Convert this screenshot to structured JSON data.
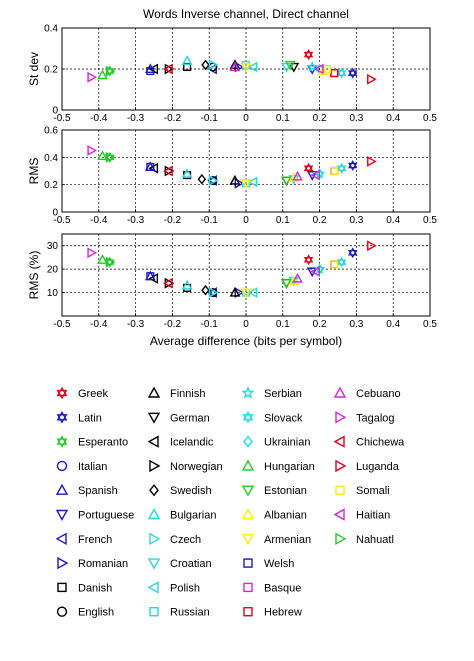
{
  "figure": {
    "title": "Words Inverse channel, Direct channel",
    "xlabel": "Average difference (bits per symbol)"
  },
  "colors": {
    "Greek": "#e8001c",
    "Latin": "#1a1acc",
    "Esperanto": "#22cc22",
    "Italian": "#1a1acc",
    "Spanish": "#1a1acc",
    "Portuguese": "#1a1acc",
    "French": "#1a1acc",
    "Romanian": "#1a1acc",
    "Danish": "#000000",
    "English": "#000000",
    "Finnish": "#000000",
    "German": "#000000",
    "Icelandic": "#000000",
    "Norwegian": "#000000",
    "Swedish": "#000000",
    "Bulgarian": "#22dddd",
    "Czech": "#22dddd",
    "Croatian": "#22dddd",
    "Polish": "#22dddd",
    "Russian": "#22dddd",
    "Serbian": "#22dddd",
    "Slovack": "#22dddd",
    "Ukrainian": "#22dddd",
    "Hungarian": "#22cc22",
    "Estonian": "#22cc22",
    "Albanian": "#ffee00",
    "Armenian": "#ffee00",
    "Welsh": "#1a1acc",
    "Basque": "#dd22dd",
    "Hebrew": "#e8001c",
    "Cebuano": "#dd22dd",
    "Tagalog": "#dd22dd",
    "Chichewa": "#e8001c",
    "Luganda": "#e8001c",
    "Somali": "#ffee00",
    "Haitian": "#dd22dd",
    "Nahuatl": "#22cc22"
  },
  "legend": {
    "columns": [
      [
        {
          "name": "Greek",
          "marker": "hexagram"
        },
        {
          "name": "Latin",
          "marker": "hexagram"
        },
        {
          "name": "Esperanto",
          "marker": "hexagram"
        },
        {
          "name": "Italian",
          "marker": "circle"
        },
        {
          "name": "Spanish",
          "marker": "triangle-up"
        },
        {
          "name": "Portuguese",
          "marker": "triangle-down"
        },
        {
          "name": "French",
          "marker": "triangle-left"
        },
        {
          "name": "Romanian",
          "marker": "triangle-right"
        },
        {
          "name": "Danish",
          "marker": "square"
        },
        {
          "name": "English",
          "marker": "circle"
        }
      ],
      [
        {
          "name": "Finnish",
          "marker": "triangle-up"
        },
        {
          "name": "German",
          "marker": "triangle-down"
        },
        {
          "name": "Icelandic",
          "marker": "triangle-left"
        },
        {
          "name": "Norwegian",
          "marker": "triangle-right"
        },
        {
          "name": "Swedish",
          "marker": "diamond"
        },
        {
          "name": "Bulgarian",
          "marker": "triangle-up"
        },
        {
          "name": "Czech",
          "marker": "triangle-right"
        },
        {
          "name": "Croatian",
          "marker": "triangle-down"
        },
        {
          "name": "Polish",
          "marker": "triangle-left"
        },
        {
          "name": "Russian",
          "marker": "square"
        }
      ],
      [
        {
          "name": "Serbian",
          "marker": "star"
        },
        {
          "name": "Slovack",
          "marker": "hexagram"
        },
        {
          "name": "Ukrainian",
          "marker": "diamond"
        },
        {
          "name": "Hungarian",
          "marker": "triangle-up"
        },
        {
          "name": "Estonian",
          "marker": "triangle-down"
        },
        {
          "name": "Albanian",
          "marker": "triangle-up"
        },
        {
          "name": "Armenian",
          "marker": "triangle-down"
        },
        {
          "name": "Welsh",
          "marker": "square"
        },
        {
          "name": "Basque",
          "marker": "square"
        },
        {
          "name": "Hebrew",
          "marker": "square"
        }
      ],
      [
        {
          "name": "Cebuano",
          "marker": "triangle-up"
        },
        {
          "name": "Tagalog",
          "marker": "triangle-right"
        },
        {
          "name": "Chichewa",
          "marker": "triangle-left"
        },
        {
          "name": "Luganda",
          "marker": "triangle-right"
        },
        {
          "name": "Somali",
          "marker": "square"
        },
        {
          "name": "Haitian",
          "marker": "triangle-left"
        },
        {
          "name": "Nahuatl",
          "marker": "triangle-right"
        }
      ]
    ]
  },
  "chart_data": [
    {
      "type": "scatter",
      "title": "Words Inverse channel, Direct channel",
      "xlabel": "",
      "ylabel": "St dev",
      "xlim": [
        -0.5,
        0.5
      ],
      "ylim": [
        0,
        0.4
      ],
      "xticks": [
        "-0.5",
        "-0.4",
        "-0.3",
        "-0.2",
        "-0.1",
        "0",
        "0.1",
        "0.2",
        "0.3",
        "0.4",
        "0.5"
      ],
      "yticks": [
        "0",
        "0.2",
        "0.4"
      ],
      "grid": true,
      "points": [
        {
          "label": "Greek",
          "x": 0.17,
          "y": 0.27
        },
        {
          "label": "Latin",
          "x": 0.29,
          "y": 0.18
        },
        {
          "label": "Esperanto",
          "x": -0.37,
          "y": 0.19
        },
        {
          "label": "Italian",
          "x": -0.09,
          "y": 0.21
        },
        {
          "label": "Spanish",
          "x": -0.26,
          "y": 0.2
        },
        {
          "label": "Portuguese",
          "x": 0.18,
          "y": 0.2
        },
        {
          "label": "French",
          "x": -0.09,
          "y": 0.2
        },
        {
          "label": "Romanian",
          "x": -0.02,
          "y": 0.21
        },
        {
          "label": "Danish",
          "x": -0.16,
          "y": 0.21
        },
        {
          "label": "English",
          "x": -0.09,
          "y": 0.21
        },
        {
          "label": "Finnish",
          "x": -0.03,
          "y": 0.22
        },
        {
          "label": "German",
          "x": 0.13,
          "y": 0.21
        },
        {
          "label": "Icelandic",
          "x": -0.25,
          "y": 0.2
        },
        {
          "label": "Norwegian",
          "x": -0.21,
          "y": 0.2
        },
        {
          "label": "Swedish",
          "x": -0.11,
          "y": 0.22
        },
        {
          "label": "Bulgarian",
          "x": -0.16,
          "y": 0.24
        },
        {
          "label": "Czech",
          "x": -0.09,
          "y": 0.22
        },
        {
          "label": "Croatian",
          "x": 0.11,
          "y": 0.21
        },
        {
          "label": "Polish",
          "x": 0.02,
          "y": 0.21
        },
        {
          "label": "Russian",
          "x": 0.0,
          "y": 0.22
        },
        {
          "label": "Serbian",
          "x": 0.18,
          "y": 0.21
        },
        {
          "label": "Slovack",
          "x": 0.26,
          "y": 0.18
        },
        {
          "label": "Ukrainian",
          "x": 0.2,
          "y": 0.2
        },
        {
          "label": "Hungarian",
          "x": -0.39,
          "y": 0.17
        },
        {
          "label": "Estonian",
          "x": 0.12,
          "y": 0.22
        },
        {
          "label": "Albanian",
          "x": 0.21,
          "y": 0.19
        },
        {
          "label": "Armenian",
          "x": 0.0,
          "y": 0.21
        },
        {
          "label": "Welsh",
          "x": -0.26,
          "y": 0.19
        },
        {
          "label": "Basque",
          "x": 0.24,
          "y": 0.18
        },
        {
          "label": "Hebrew",
          "x": 0.24,
          "y": 0.18
        },
        {
          "label": "Cebuano",
          "x": -0.03,
          "y": 0.21
        },
        {
          "label": "Tagalog",
          "x": -0.42,
          "y": 0.16
        },
        {
          "label": "Chichewa",
          "x": -0.21,
          "y": 0.2
        },
        {
          "label": "Luganda",
          "x": 0.34,
          "y": 0.15
        },
        {
          "label": "Somali",
          "x": 0.22,
          "y": 0.2
        },
        {
          "label": "Haitian",
          "x": 0.2,
          "y": 0.2
        },
        {
          "label": "Nahuatl",
          "x": -0.37,
          "y": 0.19
        }
      ]
    },
    {
      "type": "scatter",
      "xlabel": "",
      "ylabel": "RMS",
      "xlim": [
        -0.5,
        0.5
      ],
      "ylim": [
        0,
        0.6
      ],
      "xticks": [
        "-0.5",
        "-0.4",
        "-0.3",
        "-0.2",
        "-0.1",
        "0",
        "0.1",
        "0.2",
        "0.3",
        "0.4",
        "0.5"
      ],
      "yticks": [
        "0",
        "0.2",
        "0.4",
        "0.6"
      ],
      "grid": true,
      "points": [
        {
          "label": "Greek",
          "x": 0.17,
          "y": 0.32
        },
        {
          "label": "Latin",
          "x": 0.29,
          "y": 0.34
        },
        {
          "label": "Esperanto",
          "x": -0.37,
          "y": 0.4
        },
        {
          "label": "Italian",
          "x": -0.09,
          "y": 0.23
        },
        {
          "label": "Spanish",
          "x": -0.26,
          "y": 0.33
        },
        {
          "label": "Portuguese",
          "x": 0.18,
          "y": 0.27
        },
        {
          "label": "French",
          "x": -0.09,
          "y": 0.23
        },
        {
          "label": "Romanian",
          "x": -0.02,
          "y": 0.21
        },
        {
          "label": "Danish",
          "x": -0.16,
          "y": 0.27
        },
        {
          "label": "English",
          "x": -0.09,
          "y": 0.23
        },
        {
          "label": "Finnish",
          "x": -0.03,
          "y": 0.23
        },
        {
          "label": "German",
          "x": 0.11,
          "y": 0.23
        },
        {
          "label": "Icelandic",
          "x": -0.25,
          "y": 0.32
        },
        {
          "label": "Norwegian",
          "x": -0.21,
          "y": 0.3
        },
        {
          "label": "Swedish",
          "x": -0.12,
          "y": 0.24
        },
        {
          "label": "Bulgarian",
          "x": -0.16,
          "y": 0.28
        },
        {
          "label": "Czech",
          "x": -0.09,
          "y": 0.23
        },
        {
          "label": "Croatian",
          "x": 0.13,
          "y": 0.24
        },
        {
          "label": "Polish",
          "x": 0.02,
          "y": 0.22
        },
        {
          "label": "Russian",
          "x": 0.0,
          "y": 0.21
        },
        {
          "label": "Serbian",
          "x": 0.2,
          "y": 0.28
        },
        {
          "label": "Slovack",
          "x": 0.26,
          "y": 0.32
        },
        {
          "label": "Ukrainian",
          "x": 0.2,
          "y": 0.28
        },
        {
          "label": "Hungarian",
          "x": -0.39,
          "y": 0.41
        },
        {
          "label": "Estonian",
          "x": 0.11,
          "y": 0.23
        },
        {
          "label": "Albanian",
          "x": 0.13,
          "y": 0.25
        },
        {
          "label": "Armenian",
          "x": 0.0,
          "y": 0.21
        },
        {
          "label": "Welsh",
          "x": -0.26,
          "y": 0.33
        },
        {
          "label": "Basque",
          "x": 0.24,
          "y": 0.3
        },
        {
          "label": "Hebrew",
          "x": 0.24,
          "y": 0.3
        },
        {
          "label": "Cebuano",
          "x": 0.14,
          "y": 0.26
        },
        {
          "label": "Tagalog",
          "x": -0.42,
          "y": 0.45
        },
        {
          "label": "Chichewa",
          "x": -0.21,
          "y": 0.3
        },
        {
          "label": "Luganda",
          "x": 0.34,
          "y": 0.37
        },
        {
          "label": "Somali",
          "x": 0.24,
          "y": 0.3
        },
        {
          "label": "Haitian",
          "x": 0.19,
          "y": 0.27
        },
        {
          "label": "Nahuatl",
          "x": -0.37,
          "y": 0.4
        }
      ]
    },
    {
      "type": "scatter",
      "xlabel": "Average difference (bits per symbol)",
      "ylabel": "RMS (%)",
      "xlim": [
        -0.5,
        0.5
      ],
      "ylim": [
        0,
        35
      ],
      "xticks": [
        "-0.5",
        "-0.4",
        "-0.3",
        "-0.2",
        "-0.1",
        "0",
        "0.1",
        "0.2",
        "0.3",
        "0.4",
        "0.5"
      ],
      "yticks": [
        "10",
        "20",
        "30"
      ],
      "grid": true,
      "points": [
        {
          "label": "Greek",
          "x": 0.17,
          "y": 24
        },
        {
          "label": "Latin",
          "x": 0.29,
          "y": 27
        },
        {
          "label": "Esperanto",
          "x": -0.37,
          "y": 23
        },
        {
          "label": "Italian",
          "x": -0.09,
          "y": 10
        },
        {
          "label": "Spanish",
          "x": -0.26,
          "y": 17
        },
        {
          "label": "Portuguese",
          "x": 0.18,
          "y": 19
        },
        {
          "label": "French",
          "x": -0.09,
          "y": 10
        },
        {
          "label": "Romanian",
          "x": -0.02,
          "y": 10
        },
        {
          "label": "Danish",
          "x": -0.16,
          "y": 12
        },
        {
          "label": "English",
          "x": -0.09,
          "y": 10
        },
        {
          "label": "Finnish",
          "x": -0.03,
          "y": 10
        },
        {
          "label": "German",
          "x": 0.11,
          "y": 14
        },
        {
          "label": "Icelandic",
          "x": -0.25,
          "y": 16
        },
        {
          "label": "Norwegian",
          "x": -0.21,
          "y": 14
        },
        {
          "label": "Swedish",
          "x": -0.11,
          "y": 11
        },
        {
          "label": "Bulgarian",
          "x": -0.16,
          "y": 13
        },
        {
          "label": "Czech",
          "x": -0.09,
          "y": 10
        },
        {
          "label": "Croatian",
          "x": 0.13,
          "y": 15
        },
        {
          "label": "Polish",
          "x": 0.02,
          "y": 10
        },
        {
          "label": "Russian",
          "x": 0.0,
          "y": 10
        },
        {
          "label": "Serbian",
          "x": 0.2,
          "y": 20
        },
        {
          "label": "Slovack",
          "x": 0.26,
          "y": 23
        },
        {
          "label": "Ukrainian",
          "x": 0.2,
          "y": 20
        },
        {
          "label": "Hungarian",
          "x": -0.39,
          "y": 24
        },
        {
          "label": "Estonian",
          "x": 0.11,
          "y": 14
        },
        {
          "label": "Albanian",
          "x": 0.13,
          "y": 15
        },
        {
          "label": "Armenian",
          "x": 0.0,
          "y": 10
        },
        {
          "label": "Welsh",
          "x": -0.26,
          "y": 17
        },
        {
          "label": "Basque",
          "x": 0.24,
          "y": 22
        },
        {
          "label": "Hebrew",
          "x": 0.24,
          "y": 22
        },
        {
          "label": "Cebuano",
          "x": 0.14,
          "y": 16
        },
        {
          "label": "Tagalog",
          "x": -0.42,
          "y": 27
        },
        {
          "label": "Chichewa",
          "x": -0.21,
          "y": 14
        },
        {
          "label": "Luganda",
          "x": 0.34,
          "y": 30
        },
        {
          "label": "Somali",
          "x": 0.24,
          "y": 22
        },
        {
          "label": "Haitian",
          "x": 0.19,
          "y": 19
        },
        {
          "label": "Nahuatl",
          "x": -0.37,
          "y": 23
        }
      ]
    }
  ]
}
